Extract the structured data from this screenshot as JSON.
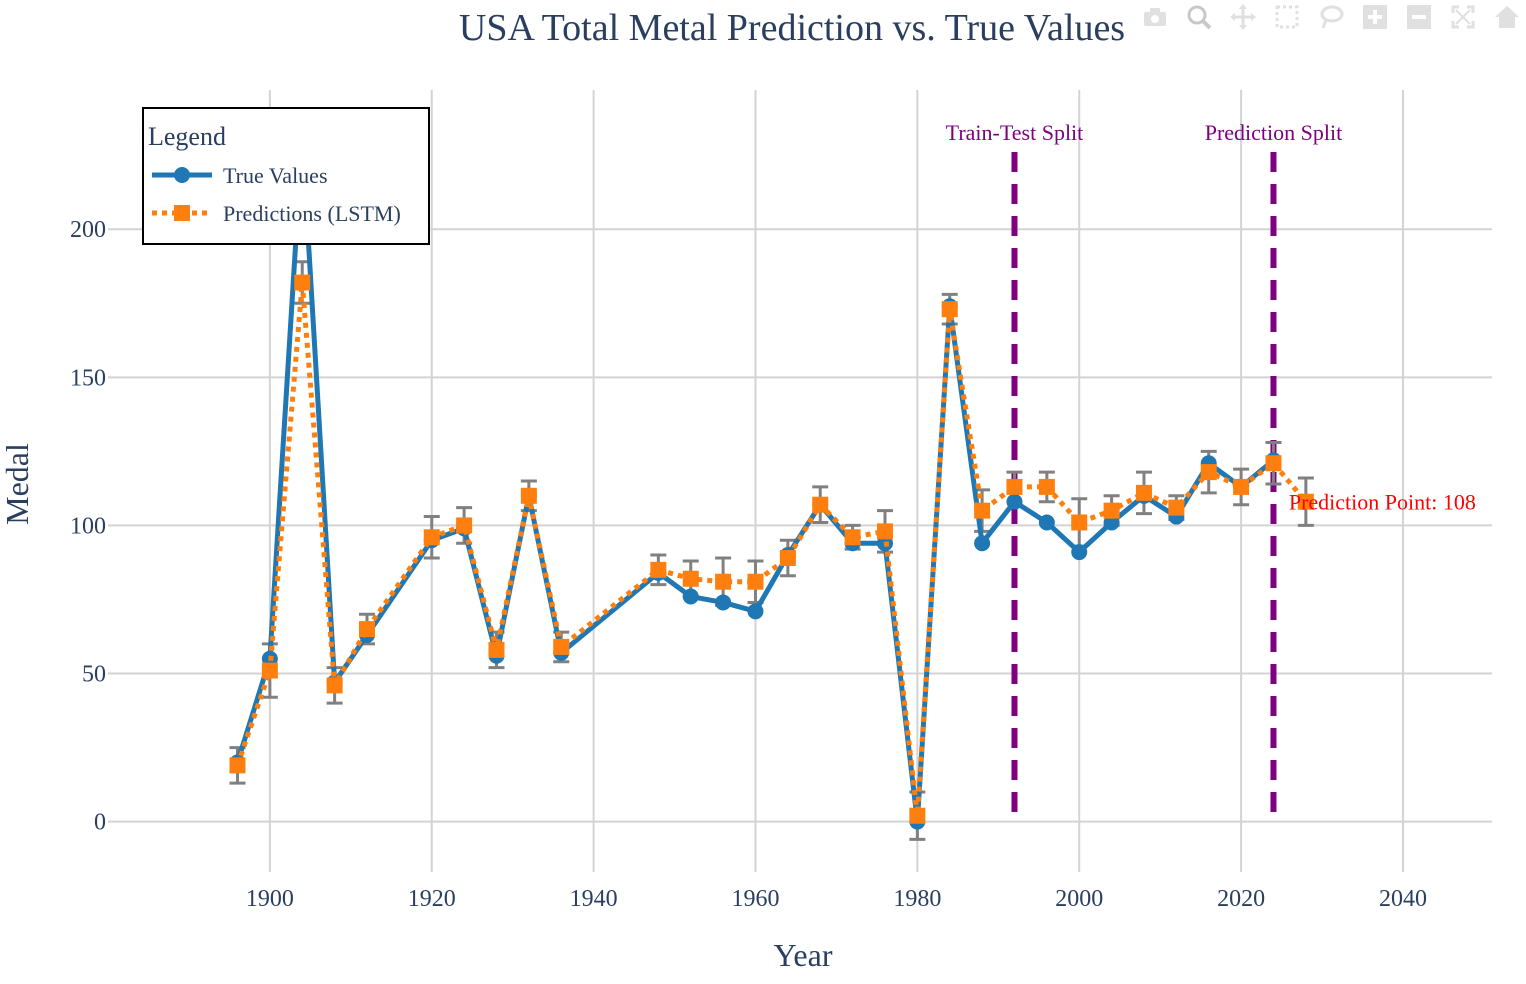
{
  "chart_data": {
    "type": "line",
    "title": "USA Total Metal Prediction vs. True Values",
    "xlabel": "Year",
    "ylabel": "Medal",
    "xlim": [
      1880,
      2051
    ],
    "ylim": [
      -17,
      247
    ],
    "x_ticks": [
      1900,
      1920,
      1940,
      1960,
      1980,
      2000,
      2020,
      2040
    ],
    "y_ticks": [
      0,
      50,
      100,
      150,
      200
    ],
    "grid": true,
    "legend": {
      "title": "Legend",
      "placement": "top-left",
      "entries": [
        "True Values",
        "Predictions (LSTM)"
      ]
    },
    "series": [
      {
        "name": "True Values",
        "color": "#1f77b4",
        "style": "solid",
        "marker": "circle",
        "x": [
          1896,
          1900,
          1904,
          1908,
          1912,
          1920,
          1924,
          1928,
          1932,
          1936,
          1948,
          1952,
          1956,
          1960,
          1964,
          1968,
          1972,
          1976,
          1980,
          1984,
          1988,
          1992,
          1996,
          2000,
          2004,
          2008,
          2012,
          2016,
          2020,
          2024
        ],
        "values": [
          20,
          55,
          231,
          47,
          63,
          95,
          99,
          56,
          110,
          57,
          84,
          76,
          74,
          71,
          90,
          107,
          94,
          94,
          0,
          174,
          94,
          108,
          101,
          91,
          101,
          110,
          103,
          121,
          113,
          122
        ]
      },
      {
        "name": "Predictions (LSTM)",
        "color": "#ff7f0e",
        "style": "dotted",
        "marker": "square",
        "x": [
          1896,
          1900,
          1904,
          1908,
          1912,
          1920,
          1924,
          1928,
          1932,
          1936,
          1948,
          1952,
          1956,
          1960,
          1964,
          1968,
          1972,
          1976,
          1980,
          1984,
          1988,
          1992,
          1996,
          2000,
          2004,
          2008,
          2012,
          2016,
          2020,
          2024,
          2028
        ],
        "values": [
          19,
          51,
          182,
          46,
          65,
          96,
          100,
          58,
          110,
          59,
          85,
          82,
          81,
          81,
          89,
          107,
          96,
          98,
          2,
          173,
          105,
          113,
          113,
          101,
          105,
          111,
          106,
          118,
          113,
          121,
          108
        ],
        "error": [
          6,
          9,
          7,
          6,
          5,
          7,
          6,
          6,
          5,
          5,
          5,
          6,
          8,
          7,
          6,
          6,
          4,
          7,
          8,
          5,
          7,
          5,
          5,
          8,
          5,
          7,
          4,
          7,
          6,
          7,
          8
        ]
      }
    ],
    "vlines": [
      {
        "x": 1992,
        "label": "Train-Test Split",
        "color": "#800080"
      },
      {
        "x": 2024,
        "label": "Prediction Split",
        "color": "#800080"
      }
    ],
    "annotations": [
      {
        "x": 2028,
        "y": 108,
        "text": "Prediction Point: 108",
        "color": "#ff0000"
      }
    ]
  },
  "modebar": {
    "icons": [
      "camera-icon",
      "zoom-icon",
      "pan-icon",
      "box-select-icon",
      "lasso-icon",
      "zoom-in-icon",
      "zoom-out-icon",
      "autoscale-icon",
      "home-icon"
    ]
  }
}
